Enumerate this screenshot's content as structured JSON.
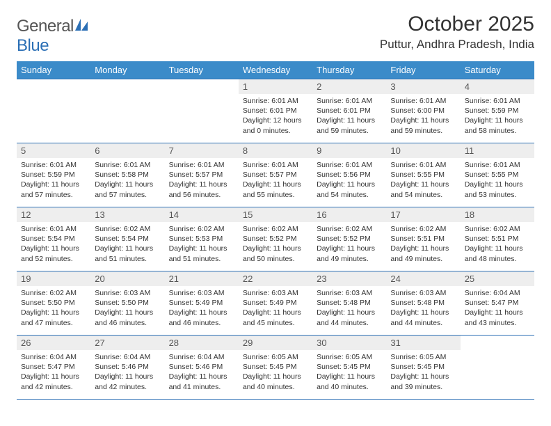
{
  "logo": {
    "text_a": "General",
    "text_b": "Blue"
  },
  "title": "October 2025",
  "location": "Puttur, Andhra Pradesh, India",
  "colors": {
    "header_bg": "#3b8bc9",
    "header_text": "#ffffff",
    "rule": "#2b6fb5",
    "daynum_bg": "#eeeeee",
    "body_text": "#333333",
    "logo_gray": "#555555",
    "logo_blue": "#2b6fb5"
  },
  "day_headers": [
    "Sunday",
    "Monday",
    "Tuesday",
    "Wednesday",
    "Thursday",
    "Friday",
    "Saturday"
  ],
  "weeks": [
    [
      null,
      null,
      null,
      {
        "n": "1",
        "l1": "Sunrise: 6:01 AM",
        "l2": "Sunset: 6:01 PM",
        "l3": "Daylight: 12 hours",
        "l4": "and 0 minutes."
      },
      {
        "n": "2",
        "l1": "Sunrise: 6:01 AM",
        "l2": "Sunset: 6:01 PM",
        "l3": "Daylight: 11 hours",
        "l4": "and 59 minutes."
      },
      {
        "n": "3",
        "l1": "Sunrise: 6:01 AM",
        "l2": "Sunset: 6:00 PM",
        "l3": "Daylight: 11 hours",
        "l4": "and 59 minutes."
      },
      {
        "n": "4",
        "l1": "Sunrise: 6:01 AM",
        "l2": "Sunset: 5:59 PM",
        "l3": "Daylight: 11 hours",
        "l4": "and 58 minutes."
      }
    ],
    [
      {
        "n": "5",
        "l1": "Sunrise: 6:01 AM",
        "l2": "Sunset: 5:59 PM",
        "l3": "Daylight: 11 hours",
        "l4": "and 57 minutes."
      },
      {
        "n": "6",
        "l1": "Sunrise: 6:01 AM",
        "l2": "Sunset: 5:58 PM",
        "l3": "Daylight: 11 hours",
        "l4": "and 57 minutes."
      },
      {
        "n": "7",
        "l1": "Sunrise: 6:01 AM",
        "l2": "Sunset: 5:57 PM",
        "l3": "Daylight: 11 hours",
        "l4": "and 56 minutes."
      },
      {
        "n": "8",
        "l1": "Sunrise: 6:01 AM",
        "l2": "Sunset: 5:57 PM",
        "l3": "Daylight: 11 hours",
        "l4": "and 55 minutes."
      },
      {
        "n": "9",
        "l1": "Sunrise: 6:01 AM",
        "l2": "Sunset: 5:56 PM",
        "l3": "Daylight: 11 hours",
        "l4": "and 54 minutes."
      },
      {
        "n": "10",
        "l1": "Sunrise: 6:01 AM",
        "l2": "Sunset: 5:55 PM",
        "l3": "Daylight: 11 hours",
        "l4": "and 54 minutes."
      },
      {
        "n": "11",
        "l1": "Sunrise: 6:01 AM",
        "l2": "Sunset: 5:55 PM",
        "l3": "Daylight: 11 hours",
        "l4": "and 53 minutes."
      }
    ],
    [
      {
        "n": "12",
        "l1": "Sunrise: 6:01 AM",
        "l2": "Sunset: 5:54 PM",
        "l3": "Daylight: 11 hours",
        "l4": "and 52 minutes."
      },
      {
        "n": "13",
        "l1": "Sunrise: 6:02 AM",
        "l2": "Sunset: 5:54 PM",
        "l3": "Daylight: 11 hours",
        "l4": "and 51 minutes."
      },
      {
        "n": "14",
        "l1": "Sunrise: 6:02 AM",
        "l2": "Sunset: 5:53 PM",
        "l3": "Daylight: 11 hours",
        "l4": "and 51 minutes."
      },
      {
        "n": "15",
        "l1": "Sunrise: 6:02 AM",
        "l2": "Sunset: 5:52 PM",
        "l3": "Daylight: 11 hours",
        "l4": "and 50 minutes."
      },
      {
        "n": "16",
        "l1": "Sunrise: 6:02 AM",
        "l2": "Sunset: 5:52 PM",
        "l3": "Daylight: 11 hours",
        "l4": "and 49 minutes."
      },
      {
        "n": "17",
        "l1": "Sunrise: 6:02 AM",
        "l2": "Sunset: 5:51 PM",
        "l3": "Daylight: 11 hours",
        "l4": "and 49 minutes."
      },
      {
        "n": "18",
        "l1": "Sunrise: 6:02 AM",
        "l2": "Sunset: 5:51 PM",
        "l3": "Daylight: 11 hours",
        "l4": "and 48 minutes."
      }
    ],
    [
      {
        "n": "19",
        "l1": "Sunrise: 6:02 AM",
        "l2": "Sunset: 5:50 PM",
        "l3": "Daylight: 11 hours",
        "l4": "and 47 minutes."
      },
      {
        "n": "20",
        "l1": "Sunrise: 6:03 AM",
        "l2": "Sunset: 5:50 PM",
        "l3": "Daylight: 11 hours",
        "l4": "and 46 minutes."
      },
      {
        "n": "21",
        "l1": "Sunrise: 6:03 AM",
        "l2": "Sunset: 5:49 PM",
        "l3": "Daylight: 11 hours",
        "l4": "and 46 minutes."
      },
      {
        "n": "22",
        "l1": "Sunrise: 6:03 AM",
        "l2": "Sunset: 5:49 PM",
        "l3": "Daylight: 11 hours",
        "l4": "and 45 minutes."
      },
      {
        "n": "23",
        "l1": "Sunrise: 6:03 AM",
        "l2": "Sunset: 5:48 PM",
        "l3": "Daylight: 11 hours",
        "l4": "and 44 minutes."
      },
      {
        "n": "24",
        "l1": "Sunrise: 6:03 AM",
        "l2": "Sunset: 5:48 PM",
        "l3": "Daylight: 11 hours",
        "l4": "and 44 minutes."
      },
      {
        "n": "25",
        "l1": "Sunrise: 6:04 AM",
        "l2": "Sunset: 5:47 PM",
        "l3": "Daylight: 11 hours",
        "l4": "and 43 minutes."
      }
    ],
    [
      {
        "n": "26",
        "l1": "Sunrise: 6:04 AM",
        "l2": "Sunset: 5:47 PM",
        "l3": "Daylight: 11 hours",
        "l4": "and 42 minutes."
      },
      {
        "n": "27",
        "l1": "Sunrise: 6:04 AM",
        "l2": "Sunset: 5:46 PM",
        "l3": "Daylight: 11 hours",
        "l4": "and 42 minutes."
      },
      {
        "n": "28",
        "l1": "Sunrise: 6:04 AM",
        "l2": "Sunset: 5:46 PM",
        "l3": "Daylight: 11 hours",
        "l4": "and 41 minutes."
      },
      {
        "n": "29",
        "l1": "Sunrise: 6:05 AM",
        "l2": "Sunset: 5:45 PM",
        "l3": "Daylight: 11 hours",
        "l4": "and 40 minutes."
      },
      {
        "n": "30",
        "l1": "Sunrise: 6:05 AM",
        "l2": "Sunset: 5:45 PM",
        "l3": "Daylight: 11 hours",
        "l4": "and 40 minutes."
      },
      {
        "n": "31",
        "l1": "Sunrise: 6:05 AM",
        "l2": "Sunset: 5:45 PM",
        "l3": "Daylight: 11 hours",
        "l4": "and 39 minutes."
      },
      null
    ]
  ]
}
